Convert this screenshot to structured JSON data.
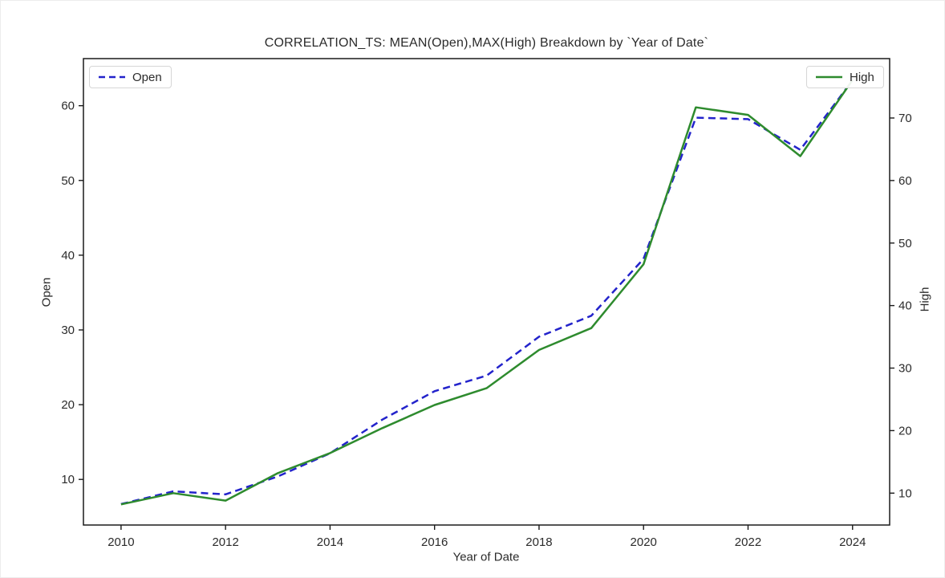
{
  "title": "CORRELATION_TS: MEAN(Open),MAX(High) Breakdown by `Year of Date`",
  "colors": {
    "open_line": "#2323cb",
    "high_line": "#2e8b2e",
    "axis_text": "#2b2b2b",
    "spine": "#1a1a1a",
    "legend_border": "#d6d6d6"
  },
  "legend": {
    "open_label": "Open",
    "high_label": "High",
    "open_position": "upper left",
    "high_position": "upper right"
  },
  "chart_data": {
    "type": "line",
    "title": "CORRELATION_TS: MEAN(Open),MAX(High) Breakdown by `Year of Date`",
    "xlabel": "Year of Date",
    "ylabel_left": "Open",
    "ylabel_right": "High",
    "grid": false,
    "x": [
      2010,
      2011,
      2012,
      2013,
      2014,
      2015,
      2016,
      2017,
      2018,
      2019,
      2020,
      2021,
      2022,
      2023,
      2024
    ],
    "series": [
      {
        "name": "Open",
        "axis": "left",
        "style": "dashed",
        "color": "#2323cb",
        "values": [
          6.7,
          8.4,
          8.0,
          10.4,
          13.5,
          18.0,
          21.8,
          23.9,
          29.1,
          31.9,
          39.5,
          58.4,
          58.2,
          54.1,
          63.4
        ]
      },
      {
        "name": "High",
        "axis": "right",
        "style": "solid",
        "color": "#2e8b2e",
        "values": [
          8.2,
          10.0,
          8.8,
          13.2,
          16.4,
          20.4,
          24.1,
          26.8,
          32.9,
          36.4,
          46.6,
          71.7,
          70.5,
          63.9,
          76.1
        ]
      }
    ],
    "x_ticks": [
      2010,
      2012,
      2014,
      2016,
      2018,
      2020,
      2022,
      2024
    ],
    "y_left_ticks": [
      10,
      20,
      30,
      40,
      50,
      60
    ],
    "y_right_ticks": [
      10,
      20,
      30,
      40,
      50,
      60,
      70
    ],
    "x_lim": [
      2009.28,
      2024.71
    ],
    "y_left_lim": [
      3.9,
      66.3
    ],
    "y_right_lim": [
      4.9,
      79.5
    ]
  }
}
